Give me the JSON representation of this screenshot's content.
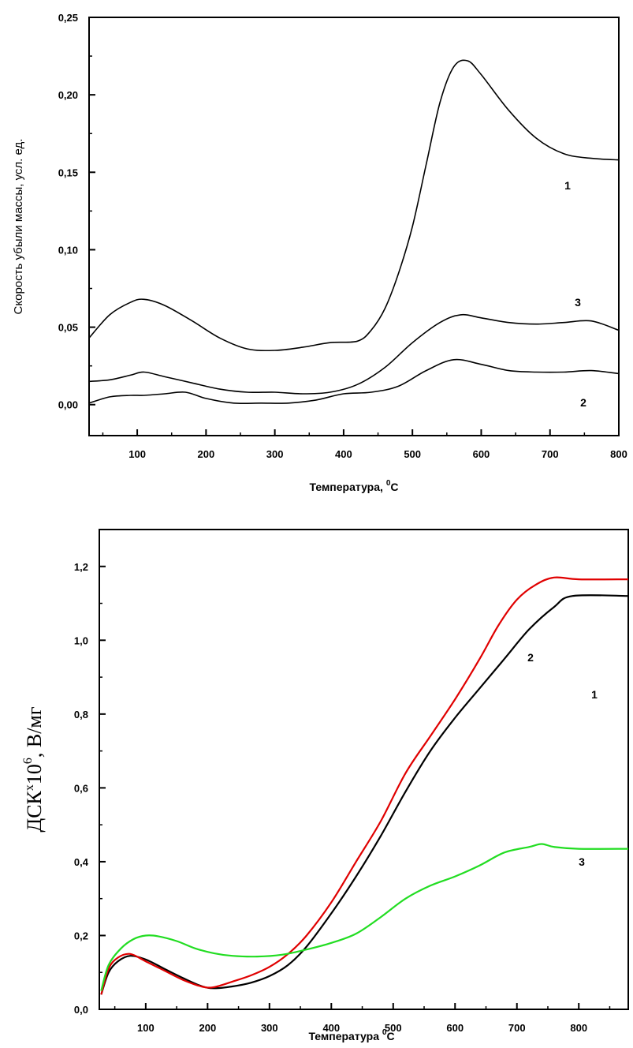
{
  "chart_data": [
    {
      "type": "line",
      "xlabel": "Температура, °C",
      "xlabel_main": "Температура, ",
      "xlabel_sup": "0",
      "xlabel_unit": "C",
      "ylabel": "Скорость убыли массы, усл. ед.",
      "xlim": [
        30,
        800
      ],
      "ylim": [
        -0.02,
        0.25
      ],
      "x_ticks": [
        "100",
        "200",
        "300",
        "400",
        "500",
        "600",
        "700",
        "800"
      ],
      "y_ticks": [
        "0,00",
        "0,05",
        "0,10",
        "0,15",
        "0,20",
        "0,25"
      ],
      "y_tick_values": [
        0,
        0.05,
        0.1,
        0.15,
        0.2,
        0.25
      ],
      "x_tick_values": [
        100,
        200,
        300,
        400,
        500,
        600,
        700,
        800
      ],
      "grid": false,
      "series": [
        {
          "name": "1",
          "color": "#000000",
          "x": [
            30,
            60,
            90,
            110,
            140,
            180,
            220,
            260,
            300,
            340,
            380,
            420,
            440,
            460,
            480,
            500,
            520,
            540,
            560,
            580,
            600,
            640,
            680,
            720,
            760,
            800
          ],
          "y": [
            0.043,
            0.058,
            0.066,
            0.068,
            0.064,
            0.054,
            0.043,
            0.036,
            0.035,
            0.037,
            0.04,
            0.041,
            0.048,
            0.062,
            0.085,
            0.115,
            0.155,
            0.195,
            0.218,
            0.222,
            0.213,
            0.19,
            0.172,
            0.162,
            0.159,
            0.158
          ]
        },
        {
          "name": "2",
          "color": "#000000",
          "x": [
            30,
            60,
            90,
            110,
            140,
            170,
            200,
            240,
            280,
            320,
            360,
            400,
            440,
            480,
            520,
            560,
            600,
            640,
            680,
            720,
            760,
            800
          ],
          "y": [
            0.001,
            0.005,
            0.006,
            0.006,
            0.007,
            0.008,
            0.004,
            0.001,
            0.001,
            0.001,
            0.003,
            0.007,
            0.008,
            0.012,
            0.022,
            0.029,
            0.026,
            0.022,
            0.021,
            0.021,
            0.022,
            0.02
          ]
        },
        {
          "name": "3",
          "color": "#000000",
          "x": [
            30,
            60,
            90,
            110,
            140,
            180,
            220,
            260,
            300,
            340,
            380,
            420,
            460,
            500,
            540,
            570,
            600,
            640,
            680,
            720,
            760,
            800
          ],
          "y": [
            0.015,
            0.016,
            0.019,
            0.021,
            0.018,
            0.014,
            0.01,
            0.008,
            0.008,
            0.007,
            0.008,
            0.013,
            0.024,
            0.04,
            0.053,
            0.058,
            0.056,
            0.053,
            0.052,
            0.053,
            0.054,
            0.048
          ]
        }
      ]
    },
    {
      "type": "line",
      "xlabel": "Температура °C",
      "xlabel_main": "Температура ",
      "xlabel_sup": "0",
      "xlabel_unit": "C",
      "ylabel": "ДСК×10^6, В/мг",
      "ylabel_main": "ДСК",
      "ylabel_times": "x",
      "ylabel_base": "10",
      "ylabel_exp": "6",
      "ylabel_unit": ", В/мг",
      "xlim": [
        25,
        880
      ],
      "ylim": [
        0,
        1.3
      ],
      "x_ticks": [
        "100",
        "200",
        "300",
        "400",
        "500",
        "600",
        "700",
        "800"
      ],
      "y_ticks": [
        "0,0",
        "0,2",
        "0,4",
        "0,6",
        "0,8",
        "1,0",
        "1,2"
      ],
      "y_tick_values": [
        0,
        0.2,
        0.4,
        0.6,
        0.8,
        1.0,
        1.2
      ],
      "x_tick_values": [
        100,
        200,
        300,
        400,
        500,
        600,
        700,
        800
      ],
      "grid": false,
      "series": [
        {
          "name": "1",
          "color": "#000000",
          "x": [
            28,
            40,
            55,
            75,
            100,
            130,
            160,
            190,
            210,
            240,
            270,
            300,
            330,
            360,
            400,
            440,
            480,
            520,
            560,
            600,
            640,
            680,
            720,
            760,
            790,
            880
          ],
          "y": [
            0.04,
            0.1,
            0.13,
            0.145,
            0.135,
            0.11,
            0.085,
            0.063,
            0.057,
            0.062,
            0.072,
            0.09,
            0.12,
            0.17,
            0.26,
            0.36,
            0.47,
            0.59,
            0.7,
            0.79,
            0.87,
            0.95,
            1.03,
            1.09,
            1.12,
            1.12
          ]
        },
        {
          "name": "2",
          "color": "#e00000",
          "x": [
            28,
            40,
            55,
            75,
            100,
            130,
            160,
            190,
            210,
            240,
            270,
            300,
            330,
            360,
            400,
            440,
            480,
            520,
            560,
            600,
            640,
            670,
            700,
            730,
            760,
            800,
            880
          ],
          "y": [
            0.04,
            0.11,
            0.14,
            0.15,
            0.13,
            0.105,
            0.08,
            0.062,
            0.06,
            0.075,
            0.092,
            0.115,
            0.15,
            0.2,
            0.29,
            0.4,
            0.51,
            0.64,
            0.74,
            0.84,
            0.95,
            1.04,
            1.11,
            1.15,
            1.17,
            1.165,
            1.165
          ]
        },
        {
          "name": "3",
          "color": "#22dd22",
          "x": [
            28,
            40,
            60,
            80,
            100,
            120,
            150,
            180,
            210,
            240,
            280,
            320,
            360,
            400,
            440,
            480,
            520,
            560,
            600,
            640,
            680,
            720,
            740,
            760,
            800,
            880
          ],
          "y": [
            0.05,
            0.12,
            0.165,
            0.19,
            0.2,
            0.198,
            0.185,
            0.165,
            0.152,
            0.145,
            0.143,
            0.148,
            0.162,
            0.18,
            0.205,
            0.25,
            0.3,
            0.335,
            0.36,
            0.39,
            0.425,
            0.44,
            0.448,
            0.44,
            0.435,
            0.435
          ]
        }
      ]
    }
  ]
}
